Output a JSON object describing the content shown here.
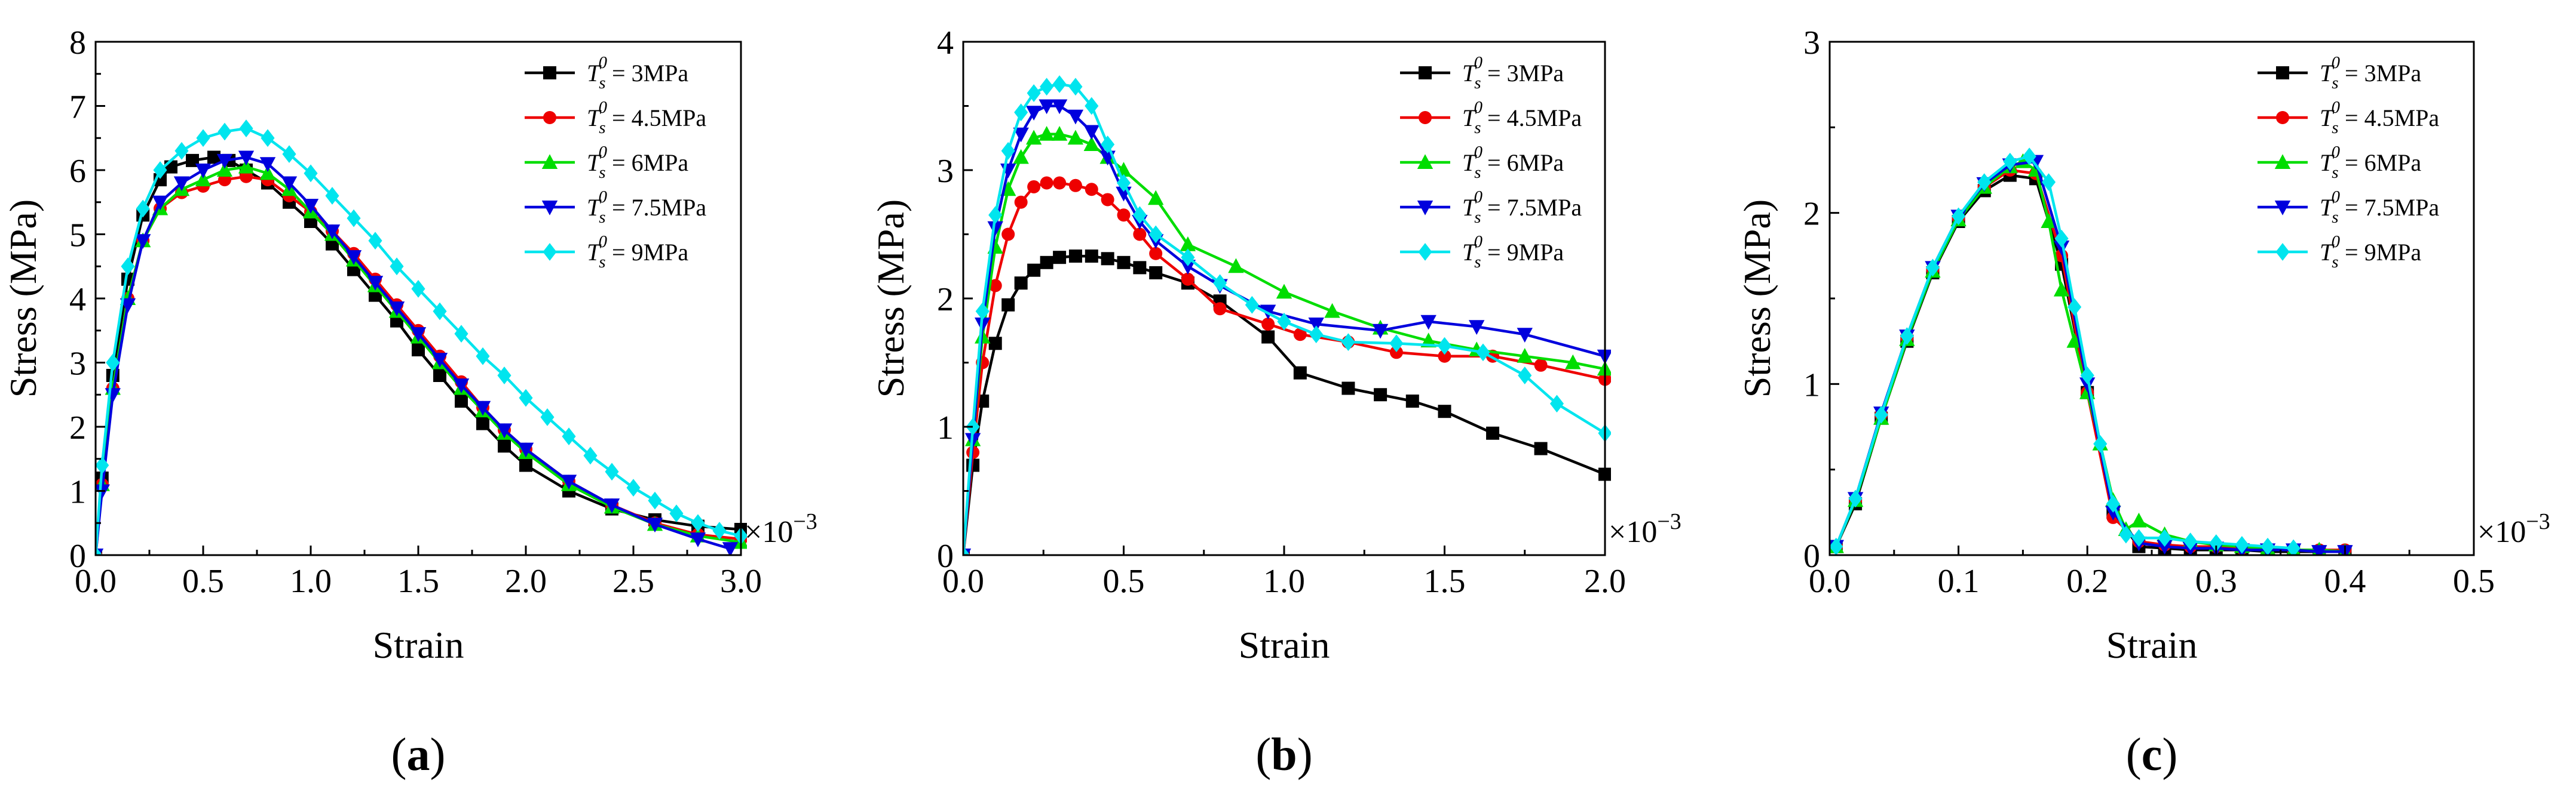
{
  "chart_data": [
    {
      "id": "a",
      "type": "line",
      "panel_label": "a",
      "xlabel": "Strain",
      "ylabel": "Stress (MPa)",
      "x_multiplier": "×10",
      "x_multiplier_exp": "−3",
      "xlim": [
        0,
        3.0
      ],
      "ylim": [
        0,
        8
      ],
      "xticks": [
        0.0,
        0.5,
        1.0,
        1.5,
        2.0,
        2.5,
        3.0
      ],
      "xtick_labels": [
        "0.0",
        "0.5",
        "1.0",
        "1.5",
        "2.0",
        "2.5",
        "3.0"
      ],
      "yticks": [
        0,
        1,
        2,
        3,
        4,
        5,
        6,
        7,
        8
      ],
      "ytick_labels": [
        "0",
        "1",
        "2",
        "3",
        "4",
        "5",
        "6",
        "7",
        "8"
      ],
      "legend_position": "top-right",
      "series": [
        {
          "name": "3MPa",
          "color": "#000000",
          "marker": "square",
          "x": [
            0,
            0.03,
            0.08,
            0.15,
            0.22,
            0.3,
            0.35,
            0.45,
            0.55,
            0.62,
            0.7,
            0.8,
            0.9,
            1.0,
            1.1,
            1.2,
            1.3,
            1.4,
            1.5,
            1.6,
            1.7,
            1.8,
            1.9,
            2.0,
            2.2,
            2.4,
            2.6,
            2.8,
            3.0
          ],
          "y": [
            0,
            1.2,
            2.8,
            4.3,
            5.3,
            5.85,
            6.05,
            6.15,
            6.2,
            6.15,
            6.0,
            5.8,
            5.5,
            5.2,
            4.85,
            4.45,
            4.05,
            3.65,
            3.2,
            2.8,
            2.4,
            2.05,
            1.7,
            1.4,
            1.0,
            0.72,
            0.55,
            0.45,
            0.4
          ]
        },
        {
          "name": "4.5MPa",
          "color": "#ee0000",
          "marker": "circle",
          "x": [
            0,
            0.03,
            0.08,
            0.15,
            0.22,
            0.3,
            0.4,
            0.5,
            0.6,
            0.7,
            0.8,
            0.9,
            1.0,
            1.1,
            1.2,
            1.3,
            1.4,
            1.5,
            1.6,
            1.7,
            1.8,
            1.9,
            2.0,
            2.2,
            2.4,
            2.6,
            2.8,
            3.0
          ],
          "y": [
            0,
            1.1,
            2.6,
            4.0,
            4.9,
            5.4,
            5.65,
            5.75,
            5.85,
            5.9,
            5.85,
            5.6,
            5.35,
            5.05,
            4.7,
            4.3,
            3.9,
            3.5,
            3.1,
            2.7,
            2.3,
            1.95,
            1.65,
            1.15,
            0.78,
            0.5,
            0.32,
            0.25
          ]
        },
        {
          "name": "6MPa",
          "color": "#00dd00",
          "marker": "triangle-up",
          "x": [
            0,
            0.03,
            0.08,
            0.15,
            0.22,
            0.3,
            0.4,
            0.5,
            0.6,
            0.7,
            0.8,
            0.9,
            1.0,
            1.1,
            1.2,
            1.3,
            1.4,
            1.5,
            1.6,
            1.7,
            1.8,
            1.9,
            2.0,
            2.2,
            2.4,
            2.6,
            2.8,
            3.0
          ],
          "y": [
            0,
            1.1,
            2.6,
            4.0,
            4.9,
            5.4,
            5.7,
            5.85,
            6.0,
            6.05,
            5.95,
            5.7,
            5.35,
            5.0,
            4.6,
            4.2,
            3.8,
            3.4,
            3.0,
            2.6,
            2.25,
            1.9,
            1.6,
            1.1,
            0.75,
            0.48,
            0.3,
            0.2
          ]
        },
        {
          "name": "7.5MPa",
          "color": "#0000dd",
          "marker": "triangle-down",
          "x": [
            0,
            0.03,
            0.08,
            0.15,
            0.22,
            0.3,
            0.4,
            0.5,
            0.6,
            0.7,
            0.8,
            0.9,
            1.0,
            1.1,
            1.2,
            1.3,
            1.4,
            1.5,
            1.6,
            1.7,
            1.8,
            1.9,
            2.0,
            2.2,
            2.4,
            2.6,
            2.8,
            2.95
          ],
          "y": [
            0,
            1.0,
            2.5,
            3.9,
            4.9,
            5.5,
            5.8,
            6.0,
            6.15,
            6.2,
            6.1,
            5.8,
            5.45,
            5.05,
            4.65,
            4.25,
            3.85,
            3.45,
            3.05,
            2.65,
            2.3,
            1.95,
            1.65,
            1.15,
            0.78,
            0.48,
            0.25,
            0.1
          ]
        },
        {
          "name": "9MPa",
          "color": "#00e5ee",
          "marker": "diamond",
          "x": [
            0,
            0.03,
            0.08,
            0.15,
            0.22,
            0.3,
            0.4,
            0.5,
            0.6,
            0.7,
            0.8,
            0.9,
            1.0,
            1.1,
            1.2,
            1.3,
            1.4,
            1.5,
            1.6,
            1.7,
            1.8,
            1.9,
            2.0,
            2.1,
            2.2,
            2.3,
            2.4,
            2.5,
            2.6,
            2.7,
            2.8,
            2.9,
            3.0
          ],
          "y": [
            0,
            1.4,
            3.0,
            4.5,
            5.4,
            6.0,
            6.3,
            6.5,
            6.6,
            6.65,
            6.5,
            6.25,
            5.95,
            5.6,
            5.25,
            4.9,
            4.5,
            4.15,
            3.8,
            3.45,
            3.1,
            2.8,
            2.45,
            2.15,
            1.85,
            1.55,
            1.3,
            1.05,
            0.85,
            0.65,
            0.5,
            0.38,
            0.3
          ]
        }
      ]
    },
    {
      "id": "b",
      "type": "line",
      "panel_label": "b",
      "xlabel": "Strain",
      "ylabel": "Stress (MPa)",
      "x_multiplier": "×10",
      "x_multiplier_exp": "−3",
      "xlim": [
        0,
        2.0
      ],
      "ylim": [
        0,
        4
      ],
      "xticks": [
        0.0,
        0.5,
        1.0,
        1.5,
        2.0
      ],
      "xtick_labels": [
        "0.0",
        "0.5",
        "1.0",
        "1.5",
        "2.0"
      ],
      "yticks": [
        0,
        1,
        2,
        3,
        4
      ],
      "ytick_labels": [
        "0",
        "1",
        "2",
        "3",
        "4"
      ],
      "legend_position": "top-right",
      "series": [
        {
          "name": "3MPa",
          "color": "#000000",
          "marker": "square",
          "x": [
            0,
            0.03,
            0.06,
            0.1,
            0.14,
            0.18,
            0.22,
            0.26,
            0.3,
            0.35,
            0.4,
            0.45,
            0.5,
            0.55,
            0.6,
            0.7,
            0.8,
            0.95,
            1.05,
            1.2,
            1.3,
            1.4,
            1.5,
            1.65,
            1.8,
            2.0
          ],
          "y": [
            0,
            0.7,
            1.2,
            1.65,
            1.95,
            2.12,
            2.22,
            2.28,
            2.32,
            2.33,
            2.33,
            2.31,
            2.28,
            2.24,
            2.2,
            2.12,
            1.98,
            1.7,
            1.42,
            1.3,
            1.25,
            1.2,
            1.12,
            0.95,
            0.83,
            0.63
          ]
        },
        {
          "name": "4.5MPa",
          "color": "#ee0000",
          "marker": "circle",
          "x": [
            0,
            0.03,
            0.06,
            0.1,
            0.14,
            0.18,
            0.22,
            0.26,
            0.3,
            0.35,
            0.4,
            0.45,
            0.5,
            0.55,
            0.6,
            0.7,
            0.8,
            0.95,
            1.05,
            1.2,
            1.35,
            1.5,
            1.65,
            1.8,
            2.0
          ],
          "y": [
            0,
            0.8,
            1.5,
            2.1,
            2.5,
            2.75,
            2.87,
            2.9,
            2.9,
            2.88,
            2.85,
            2.77,
            2.65,
            2.5,
            2.35,
            2.15,
            1.92,
            1.8,
            1.72,
            1.66,
            1.58,
            1.55,
            1.55,
            1.48,
            1.37
          ]
        },
        {
          "name": "6MPa",
          "color": "#00dd00",
          "marker": "triangle-up",
          "x": [
            0,
            0.03,
            0.06,
            0.1,
            0.14,
            0.18,
            0.22,
            0.26,
            0.3,
            0.35,
            0.4,
            0.45,
            0.5,
            0.6,
            0.7,
            0.85,
            1.0,
            1.15,
            1.3,
            1.45,
            1.6,
            1.75,
            1.9,
            2.0
          ],
          "y": [
            0,
            0.9,
            1.7,
            2.4,
            2.85,
            3.1,
            3.25,
            3.28,
            3.28,
            3.25,
            3.2,
            3.1,
            3.0,
            2.78,
            2.42,
            2.25,
            2.05,
            1.9,
            1.77,
            1.67,
            1.6,
            1.55,
            1.5,
            1.45
          ]
        },
        {
          "name": "7.5MPa",
          "color": "#0000dd",
          "marker": "triangle-down",
          "x": [
            0,
            0.03,
            0.06,
            0.1,
            0.14,
            0.18,
            0.22,
            0.26,
            0.3,
            0.35,
            0.4,
            0.45,
            0.5,
            0.55,
            0.6,
            0.7,
            0.8,
            0.95,
            1.1,
            1.3,
            1.45,
            1.6,
            1.75,
            2.0
          ],
          "y": [
            0,
            0.9,
            1.8,
            2.55,
            3.0,
            3.28,
            3.45,
            3.5,
            3.5,
            3.42,
            3.3,
            3.1,
            2.82,
            2.6,
            2.45,
            2.25,
            2.1,
            1.9,
            1.8,
            1.75,
            1.82,
            1.78,
            1.72,
            1.55
          ]
        },
        {
          "name": "9MPa",
          "color": "#00e5ee",
          "marker": "diamond",
          "x": [
            0,
            0.03,
            0.06,
            0.1,
            0.14,
            0.18,
            0.22,
            0.26,
            0.3,
            0.35,
            0.4,
            0.45,
            0.5,
            0.55,
            0.6,
            0.7,
            0.8,
            0.9,
            1.0,
            1.1,
            1.2,
            1.35,
            1.5,
            1.62,
            1.75,
            1.85,
            2.0
          ],
          "y": [
            0,
            1.0,
            1.9,
            2.65,
            3.15,
            3.45,
            3.6,
            3.65,
            3.67,
            3.65,
            3.5,
            3.2,
            2.9,
            2.65,
            2.5,
            2.32,
            2.12,
            1.95,
            1.82,
            1.72,
            1.66,
            1.65,
            1.63,
            1.58,
            1.4,
            1.18,
            0.95
          ]
        }
      ]
    },
    {
      "id": "c",
      "type": "line",
      "panel_label": "c",
      "xlabel": "Strain",
      "ylabel": "Stress (MPa)",
      "x_multiplier": "×10",
      "x_multiplier_exp": "−3",
      "xlim": [
        0,
        0.5
      ],
      "ylim": [
        0,
        3
      ],
      "xticks": [
        0.0,
        0.1,
        0.2,
        0.3,
        0.4,
        0.5
      ],
      "xtick_labels": [
        "0.0",
        "0.1",
        "0.2",
        "0.3",
        "0.4",
        "0.5"
      ],
      "yticks": [
        0,
        1,
        2,
        3
      ],
      "ytick_labels": [
        "0",
        "1",
        "2",
        "3"
      ],
      "legend_position": "top-right",
      "series": [
        {
          "name": "3MPa",
          "color": "#000000",
          "marker": "square",
          "x": [
            0.005,
            0.02,
            0.04,
            0.06,
            0.08,
            0.1,
            0.12,
            0.14,
            0.16,
            0.18,
            0.2,
            0.22,
            0.24,
            0.26,
            0.28,
            0.3,
            0.32,
            0.34,
            0.36,
            0.38,
            0.4
          ],
          "y": [
            0.05,
            0.3,
            0.8,
            1.25,
            1.65,
            1.95,
            2.13,
            2.22,
            2.2,
            1.7,
            0.95,
            0.25,
            0.05,
            0.04,
            0.03,
            0.03,
            0.03,
            0.02,
            0.02,
            0.02,
            0.02
          ]
        },
        {
          "name": "4.5MPa",
          "color": "#ee0000",
          "marker": "circle",
          "x": [
            0.005,
            0.02,
            0.04,
            0.06,
            0.08,
            0.1,
            0.12,
            0.14,
            0.16,
            0.18,
            0.2,
            0.22,
            0.24,
            0.26,
            0.28,
            0.3,
            0.32,
            0.34,
            0.36,
            0.38,
            0.4
          ],
          "y": [
            0.05,
            0.32,
            0.82,
            1.27,
            1.67,
            1.97,
            2.15,
            2.25,
            2.23,
            1.75,
            0.95,
            0.22,
            0.08,
            0.06,
            0.05,
            0.05,
            0.04,
            0.04,
            0.03,
            0.03,
            0.03
          ]
        },
        {
          "name": "6MPa",
          "color": "#00dd00",
          "marker": "triangle-up",
          "x": [
            0.005,
            0.02,
            0.04,
            0.06,
            0.08,
            0.1,
            0.12,
            0.14,
            0.15,
            0.16,
            0.17,
            0.18,
            0.19,
            0.2,
            0.21,
            0.22,
            0.23,
            0.24,
            0.26,
            0.28,
            0.3,
            0.32,
            0.34,
            0.36,
            0.38,
            0.4
          ],
          "y": [
            0.05,
            0.32,
            0.8,
            1.26,
            1.66,
            1.96,
            2.15,
            2.27,
            2.3,
            2.25,
            1.95,
            1.55,
            1.25,
            0.95,
            0.65,
            0.32,
            0.15,
            0.2,
            0.12,
            0.08,
            0.06,
            0.05,
            0.04,
            0.03,
            0.03,
            0.02
          ]
        },
        {
          "name": "7.5MPa",
          "color": "#0000dd",
          "marker": "triangle-down",
          "x": [
            0.005,
            0.02,
            0.04,
            0.06,
            0.08,
            0.1,
            0.12,
            0.14,
            0.16,
            0.18,
            0.2,
            0.22,
            0.24,
            0.26,
            0.28,
            0.3,
            0.32,
            0.34,
            0.36,
            0.38,
            0.4
          ],
          "y": [
            0.05,
            0.33,
            0.83,
            1.28,
            1.68,
            1.98,
            2.17,
            2.28,
            2.3,
            1.8,
            1.0,
            0.25,
            0.07,
            0.05,
            0.04,
            0.04,
            0.03,
            0.03,
            0.03,
            0.02,
            0.02
          ]
        },
        {
          "name": "9MPa",
          "color": "#00e5ee",
          "marker": "diamond",
          "x": [
            0.005,
            0.02,
            0.04,
            0.06,
            0.08,
            0.1,
            0.12,
            0.14,
            0.155,
            0.17,
            0.18,
            0.19,
            0.2,
            0.21,
            0.22,
            0.23,
            0.24,
            0.26,
            0.28,
            0.3,
            0.32,
            0.34,
            0.36
          ],
          "y": [
            0.05,
            0.33,
            0.82,
            1.28,
            1.68,
            1.98,
            2.18,
            2.3,
            2.33,
            2.18,
            1.85,
            1.45,
            1.05,
            0.65,
            0.3,
            0.12,
            0.1,
            0.1,
            0.08,
            0.07,
            0.06,
            0.05,
            0.04
          ]
        }
      ]
    }
  ]
}
